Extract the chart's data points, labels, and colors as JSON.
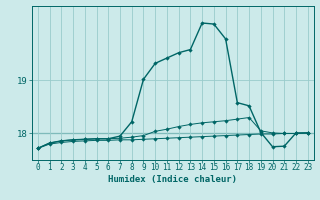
{
  "xlabel": "Humidex (Indice chaleur)",
  "bg_color": "#cceaea",
  "grid_color": "#99cccc",
  "line_color": "#006666",
  "yticks": [
    18,
    19
  ],
  "ylim": [
    17.5,
    20.4
  ],
  "xlim": [
    -0.5,
    23.5
  ],
  "xticks": [
    0,
    1,
    2,
    3,
    4,
    5,
    6,
    7,
    8,
    9,
    10,
    11,
    12,
    13,
    14,
    15,
    16,
    17,
    18,
    19,
    20,
    21,
    22,
    23
  ],
  "line1_x": [
    0,
    1,
    2,
    3,
    4,
    5,
    6,
    7,
    8,
    9,
    10,
    11,
    12,
    13,
    14,
    15,
    16,
    17,
    18,
    19,
    20,
    21,
    22,
    23
  ],
  "line1_y": [
    17.72,
    17.8,
    17.83,
    17.85,
    17.86,
    17.87,
    17.87,
    17.88,
    17.88,
    17.89,
    17.9,
    17.91,
    17.92,
    17.93,
    17.94,
    17.95,
    17.96,
    17.97,
    17.98,
    17.99,
    17.99,
    18.0,
    18.0,
    18.01
  ],
  "line2_x": [
    0,
    1,
    2,
    3,
    4,
    5,
    6,
    7,
    8,
    9,
    10,
    11,
    12,
    13,
    14,
    15,
    16,
    17,
    18,
    19,
    20,
    21,
    22,
    23
  ],
  "line2_y": [
    17.72,
    17.82,
    17.86,
    17.88,
    17.89,
    17.9,
    17.9,
    17.91,
    17.93,
    17.96,
    18.04,
    18.08,
    18.13,
    18.17,
    18.2,
    18.22,
    18.24,
    18.27,
    18.3,
    18.05,
    18.01,
    18.0,
    18.0,
    18.01
  ],
  "line3_x": [
    0,
    1,
    2,
    3,
    4,
    5,
    6,
    7,
    8,
    9,
    10,
    11,
    12,
    13,
    14,
    15,
    16,
    17,
    18,
    19,
    20,
    21,
    22,
    23
  ],
  "line3_y": [
    17.72,
    17.82,
    17.86,
    17.88,
    17.89,
    17.9,
    17.9,
    17.95,
    18.22,
    19.02,
    19.32,
    19.42,
    19.52,
    19.58,
    20.08,
    20.06,
    19.78,
    18.58,
    18.52,
    18.02,
    17.75,
    17.76,
    18.01,
    18.01
  ],
  "hline_y": 18.0,
  "marker": "D",
  "markersize": 2.2,
  "lw_thin": 0.7,
  "lw_main": 1.0
}
